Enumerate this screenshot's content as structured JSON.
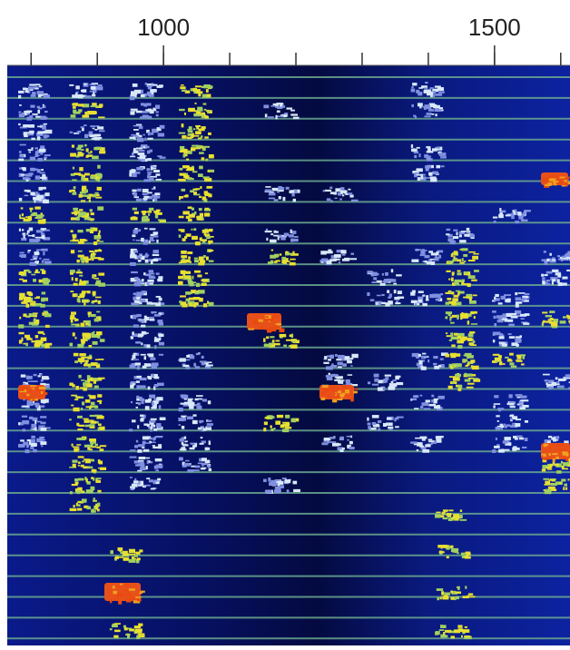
{
  "axis": {
    "xlim": [
      764,
      1614
    ],
    "ticks": [
      800,
      900,
      1000,
      1100,
      1200,
      1300,
      1400,
      1500,
      1600
    ],
    "labels": [
      1000,
      1500
    ]
  }
}
